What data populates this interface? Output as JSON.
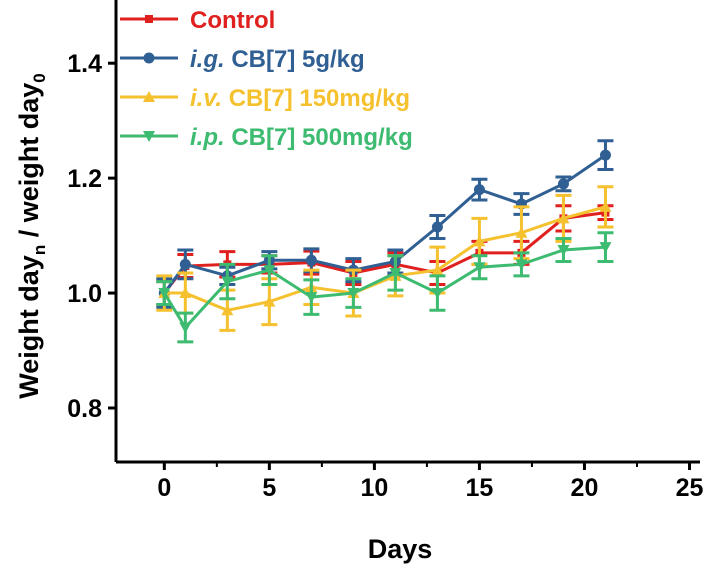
{
  "chart_data": {
    "type": "line",
    "xlabel": "Days",
    "ylabel": {
      "main": "Weight day",
      "sub1": "n",
      "mid": " / weight day",
      "sub2": "0"
    },
    "xlim": [
      -2.3,
      25.5
    ],
    "ylim": [
      0.706,
      1.51
    ],
    "xticks": [
      0,
      5,
      10,
      15,
      20,
      25
    ],
    "yticks": [
      0.8,
      1.0,
      1.2,
      1.4
    ],
    "ytick_labels": [
      "0.8",
      "1.0",
      "1.2",
      "1.4"
    ],
    "grid": false,
    "legend_position": "top-left",
    "x": [
      0,
      1,
      3,
      5,
      7,
      9,
      11,
      13,
      15,
      17,
      19,
      21
    ],
    "series": [
      {
        "name": "Control",
        "prefix": "",
        "label": "Control",
        "color": "#e0201e",
        "marker": "square",
        "values": [
          1.0,
          1.047,
          1.05,
          1.05,
          1.053,
          1.035,
          1.05,
          1.035,
          1.07,
          1.07,
          1.13,
          1.14
        ],
        "errors": [
          0.02,
          0.02,
          0.022,
          0.015,
          0.02,
          0.02,
          0.02,
          0.02,
          0.02,
          0.02,
          0.022,
          0.012
        ]
      },
      {
        "name": "i.g. CB[7] 5g/kg",
        "prefix": "i.g.",
        "label": " CB[7] 5g/kg",
        "color": "#2f5f93",
        "marker": "circle",
        "values": [
          1.0,
          1.05,
          1.03,
          1.057,
          1.057,
          1.04,
          1.055,
          1.115,
          1.18,
          1.155,
          1.19,
          1.24
        ],
        "errors": [
          0.025,
          0.025,
          0.015,
          0.015,
          0.02,
          0.02,
          0.02,
          0.02,
          0.018,
          0.018,
          0.012,
          0.025
        ]
      },
      {
        "name": "i.v. CB[7] 150mg/kg",
        "prefix": "i.v.",
        "label": " CB[7] 150mg/kg",
        "color": "#f5c12e",
        "marker": "triangle-up",
        "values": [
          1.0,
          1.0,
          0.97,
          0.985,
          1.01,
          1.0,
          1.03,
          1.04,
          1.09,
          1.105,
          1.13,
          1.15
        ],
        "errors": [
          0.03,
          0.035,
          0.035,
          0.04,
          0.03,
          0.04,
          0.035,
          0.04,
          0.04,
          0.045,
          0.04,
          0.035
        ]
      },
      {
        "name": "i.p. CB[7] 500mg/kg",
        "prefix": "i.p.",
        "label": " CB[7] 500mg/kg",
        "color": "#3dbb70",
        "marker": "triangle-down",
        "values": [
          1.0,
          0.94,
          1.02,
          1.04,
          0.993,
          1.0,
          1.035,
          1.0,
          1.045,
          1.05,
          1.075,
          1.08
        ],
        "errors": [
          0.02,
          0.025,
          0.03,
          0.025,
          0.03,
          0.025,
          0.03,
          0.03,
          0.02,
          0.02,
          0.02,
          0.025
        ]
      }
    ]
  }
}
